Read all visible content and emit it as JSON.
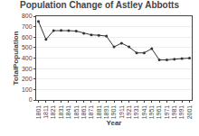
{
  "chart_data": {
    "type": "line",
    "title": "Population Change of Astley Abbotts",
    "x_label": "Year",
    "y_label": "TotalPopulation",
    "x": [
      1801,
      1811,
      1821,
      1831,
      1841,
      1851,
      1861,
      1871,
      1881,
      1891,
      1901,
      1911,
      1921,
      1931,
      1941,
      1951,
      1961,
      1971,
      1981,
      1991,
      2001
    ],
    "values": [
      750,
      578,
      662,
      665,
      662,
      658,
      637,
      622,
      618,
      610,
      507,
      543,
      507,
      450,
      450,
      490,
      383,
      383,
      390,
      395,
      400
    ],
    "xlim": [
      1798,
      2004
    ],
    "xticks": [
      1801,
      1811,
      1821,
      1831,
      1841,
      1851,
      1861,
      1871,
      1881,
      1891,
      1901,
      1911,
      1921,
      1931,
      1941,
      1951,
      1961,
      1971,
      1981,
      1991,
      2001
    ],
    "ylim": [
      0,
      800
    ],
    "yticks": [
      0,
      100,
      200,
      300,
      400,
      500,
      600,
      700,
      800
    ],
    "color": "#333333",
    "marker": "circle",
    "grid": "y"
  }
}
